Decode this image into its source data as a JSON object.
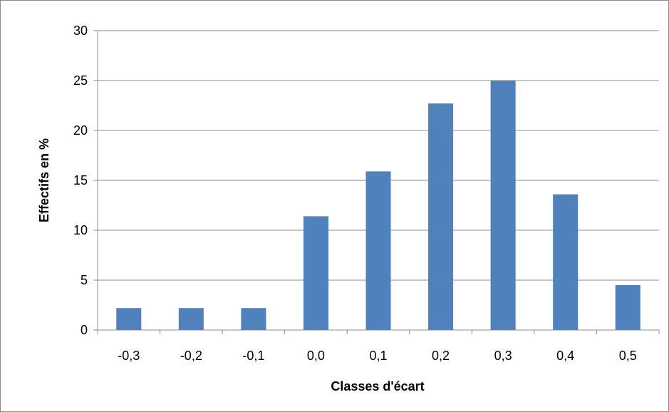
{
  "chart_data": {
    "type": "bar",
    "categories": [
      "-0,3",
      "-0,2",
      "-0,1",
      "0,0",
      "0,1",
      "0,2",
      "0,3",
      "0,4",
      "0,5"
    ],
    "values": [
      2.2,
      2.2,
      2.2,
      11.4,
      15.9,
      22.7,
      25.0,
      13.6,
      4.5
    ],
    "title": "",
    "xlabel": "Classes d'écart",
    "ylabel": "Effectifs en %",
    "ylim": [
      0,
      30
    ],
    "yticks": [
      "0",
      "5",
      "10",
      "15",
      "20",
      "25",
      "30"
    ],
    "grid": true,
    "legend": "none",
    "bar_color": "#4f81bd",
    "grid_color": "#8c8c8c"
  }
}
